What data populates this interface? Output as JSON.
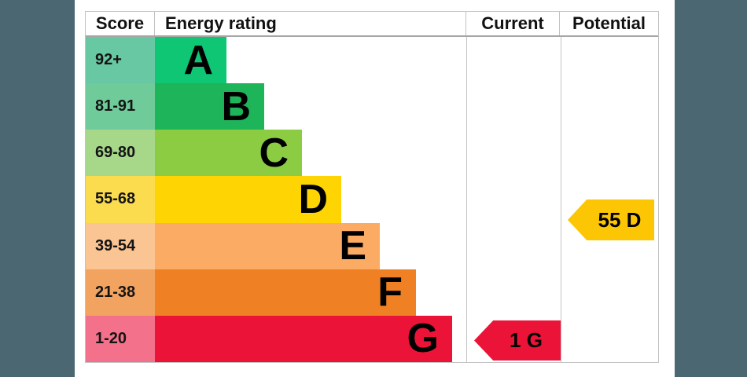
{
  "background_band_color": "#4b6771",
  "chart_data": {
    "type": "bar",
    "title": "Energy efficiency rating chart",
    "columns": [
      "Score",
      "Energy rating",
      "Current",
      "Potential"
    ],
    "bands": [
      {
        "grade": "A",
        "score_range": "92+",
        "bar_color": "#0ec674",
        "score_bg": "#68c8a3"
      },
      {
        "grade": "B",
        "score_range": "81-91",
        "bar_color": "#1eb459",
        "score_bg": "#6fcb99"
      },
      {
        "grade": "C",
        "score_range": "69-80",
        "bar_color": "#8ccc43",
        "score_bg": "#a7d889"
      },
      {
        "grade": "D",
        "score_range": "55-68",
        "bar_color": "#fed502",
        "score_bg": "#fcdc4f"
      },
      {
        "grade": "E",
        "score_range": "39-54",
        "bar_color": "#fbab63",
        "score_bg": "#fbc493"
      },
      {
        "grade": "F",
        "score_range": "21-38",
        "bar_color": "#ef8124",
        "score_bg": "#f2a360"
      },
      {
        "grade": "G",
        "score_range": "1-20",
        "bar_color": "#eb1438",
        "score_bg": "#f3718a"
      }
    ],
    "current": {
      "label": "1 G",
      "score": 1,
      "grade": "G",
      "color": "#eb1438"
    },
    "potential": {
      "label": "55 D",
      "score": 55,
      "grade": "D",
      "color": "#fcc605"
    },
    "legend_position": "none",
    "grid": false
  }
}
